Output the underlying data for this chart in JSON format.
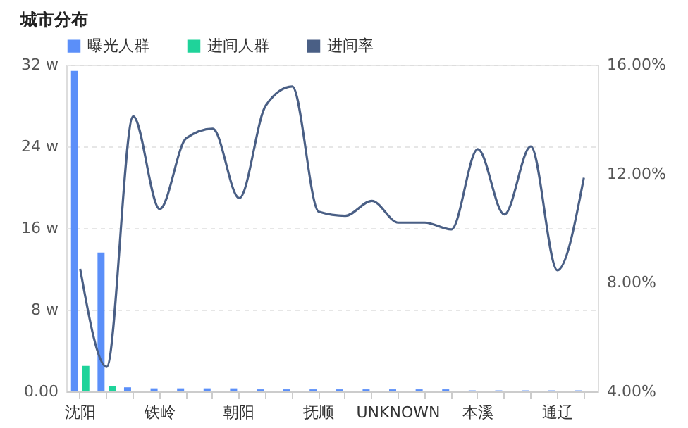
{
  "chart_data": {
    "type": "bar",
    "title": "城市分布",
    "categories": [
      "沈阳",
      null,
      null,
      "铁岭",
      null,
      null,
      "朝阳",
      null,
      null,
      "抚顺",
      null,
      null,
      "UNKNOWN",
      null,
      null,
      "本溪",
      null,
      null,
      "通辽",
      null
    ],
    "series": [
      {
        "name": "曝光人群",
        "color": "#5b8ff9",
        "values": [
          31.4,
          13.6,
          0.4,
          0.3,
          0.3,
          0.3,
          0.3,
          0.2,
          0.2,
          0.2,
          0.2,
          0.2,
          0.2,
          0.2,
          0.2,
          0.1,
          0.1,
          0.1,
          0.1,
          0.1
        ]
      },
      {
        "name": "进间人群",
        "color": "#1fd39a",
        "values": [
          2.5,
          0.5,
          0,
          0,
          0,
          0,
          0,
          0,
          0,
          0,
          0,
          0,
          0,
          0,
          0,
          0,
          0,
          0,
          0,
          0
        ]
      },
      {
        "name": "进间率",
        "type": "line",
        "axis": "y2",
        "color": "#4a5f85",
        "values": [
          8.5,
          4.9,
          14.1,
          10.7,
          13.3,
          13.65,
          11.1,
          14.5,
          15.2,
          10.6,
          10.45,
          11.0,
          10.2,
          10.2,
          9.95,
          12.9,
          10.5,
          13.0,
          8.45,
          11.85
        ]
      }
    ],
    "ylim": [
      0,
      32
    ],
    "yticks": [
      {
        "value": 0,
        "label": "0.00"
      },
      {
        "value": 8,
        "label": "8 w"
      },
      {
        "value": 16,
        "label": "16 w"
      },
      {
        "value": 24,
        "label": "24 w"
      },
      {
        "value": 32,
        "label": "32 w"
      }
    ],
    "y2lim": [
      4,
      16
    ],
    "y2ticks": [
      {
        "value": 4,
        "label": "4.00%"
      },
      {
        "value": 8,
        "label": "8.00%"
      },
      {
        "value": 12,
        "label": "12.00%"
      },
      {
        "value": 16,
        "label": "16.00%"
      }
    ],
    "grid": "y",
    "legend": "top left",
    "marker": "none",
    "line_style": "solid"
  }
}
